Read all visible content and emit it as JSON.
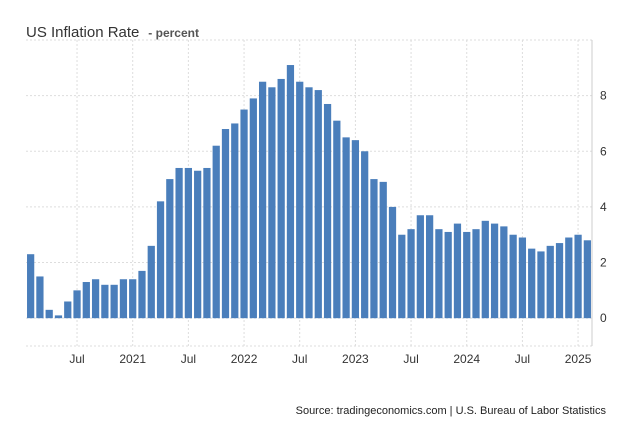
{
  "title": "US Inflation Rate",
  "unit": "- percent",
  "source": "Source: tradingeconomics.com | U.S. Bureau of Labor Statistics",
  "colors": {
    "bar": "#4a7ebb",
    "grid": "#dddddd",
    "text": "#333333"
  },
  "chart_data": {
    "type": "bar",
    "title": "US Inflation Rate",
    "ylabel": "percent",
    "x": [
      "2020-02",
      "2020-03",
      "2020-04",
      "2020-05",
      "2020-06",
      "2020-07",
      "2020-08",
      "2020-09",
      "2020-10",
      "2020-11",
      "2020-12",
      "2021-01",
      "2021-02",
      "2021-03",
      "2021-04",
      "2021-05",
      "2021-06",
      "2021-07",
      "2021-08",
      "2021-09",
      "2021-10",
      "2021-11",
      "2021-12",
      "2022-01",
      "2022-02",
      "2022-03",
      "2022-04",
      "2022-05",
      "2022-06",
      "2022-07",
      "2022-08",
      "2022-09",
      "2022-10",
      "2022-11",
      "2022-12",
      "2023-01",
      "2023-02",
      "2023-03",
      "2023-04",
      "2023-05",
      "2023-06",
      "2023-07",
      "2023-08",
      "2023-09",
      "2023-10",
      "2023-11",
      "2023-12",
      "2024-01",
      "2024-02",
      "2024-03",
      "2024-04",
      "2024-05",
      "2024-06",
      "2024-07",
      "2024-08",
      "2024-09",
      "2024-10",
      "2024-11",
      "2024-12",
      "2025-01",
      "2025-02"
    ],
    "values": [
      2.3,
      1.5,
      0.3,
      0.1,
      0.6,
      1.0,
      1.3,
      1.4,
      1.2,
      1.2,
      1.4,
      1.4,
      1.7,
      2.6,
      4.2,
      5.0,
      5.4,
      5.4,
      5.3,
      5.4,
      6.2,
      6.8,
      7.0,
      7.5,
      7.9,
      8.5,
      8.3,
      8.6,
      9.1,
      8.5,
      8.3,
      8.2,
      7.7,
      7.1,
      6.5,
      6.4,
      6.0,
      5.0,
      4.9,
      4.0,
      3.0,
      3.2,
      3.7,
      3.7,
      3.2,
      3.1,
      3.4,
      3.1,
      3.2,
      3.5,
      3.4,
      3.3,
      3.0,
      2.9,
      2.5,
      2.4,
      2.6,
      2.7,
      2.9,
      3.0,
      2.8
    ],
    "ylim": [
      -1,
      10
    ],
    "yticks": [
      "0",
      "2",
      "4",
      "6",
      "8"
    ],
    "xtick_labels": [
      {
        "at": "2020-07",
        "label": "Jul"
      },
      {
        "at": "2021-01",
        "label": "2021"
      },
      {
        "at": "2021-07",
        "label": "Jul"
      },
      {
        "at": "2022-01",
        "label": "2022"
      },
      {
        "at": "2022-07",
        "label": "Jul"
      },
      {
        "at": "2023-01",
        "label": "2023"
      },
      {
        "at": "2023-07",
        "label": "Jul"
      },
      {
        "at": "2024-01",
        "label": "2024"
      },
      {
        "at": "2024-07",
        "label": "Jul"
      },
      {
        "at": "2025-01",
        "label": "2025"
      }
    ],
    "grid": true,
    "yaxis_position": "right"
  }
}
